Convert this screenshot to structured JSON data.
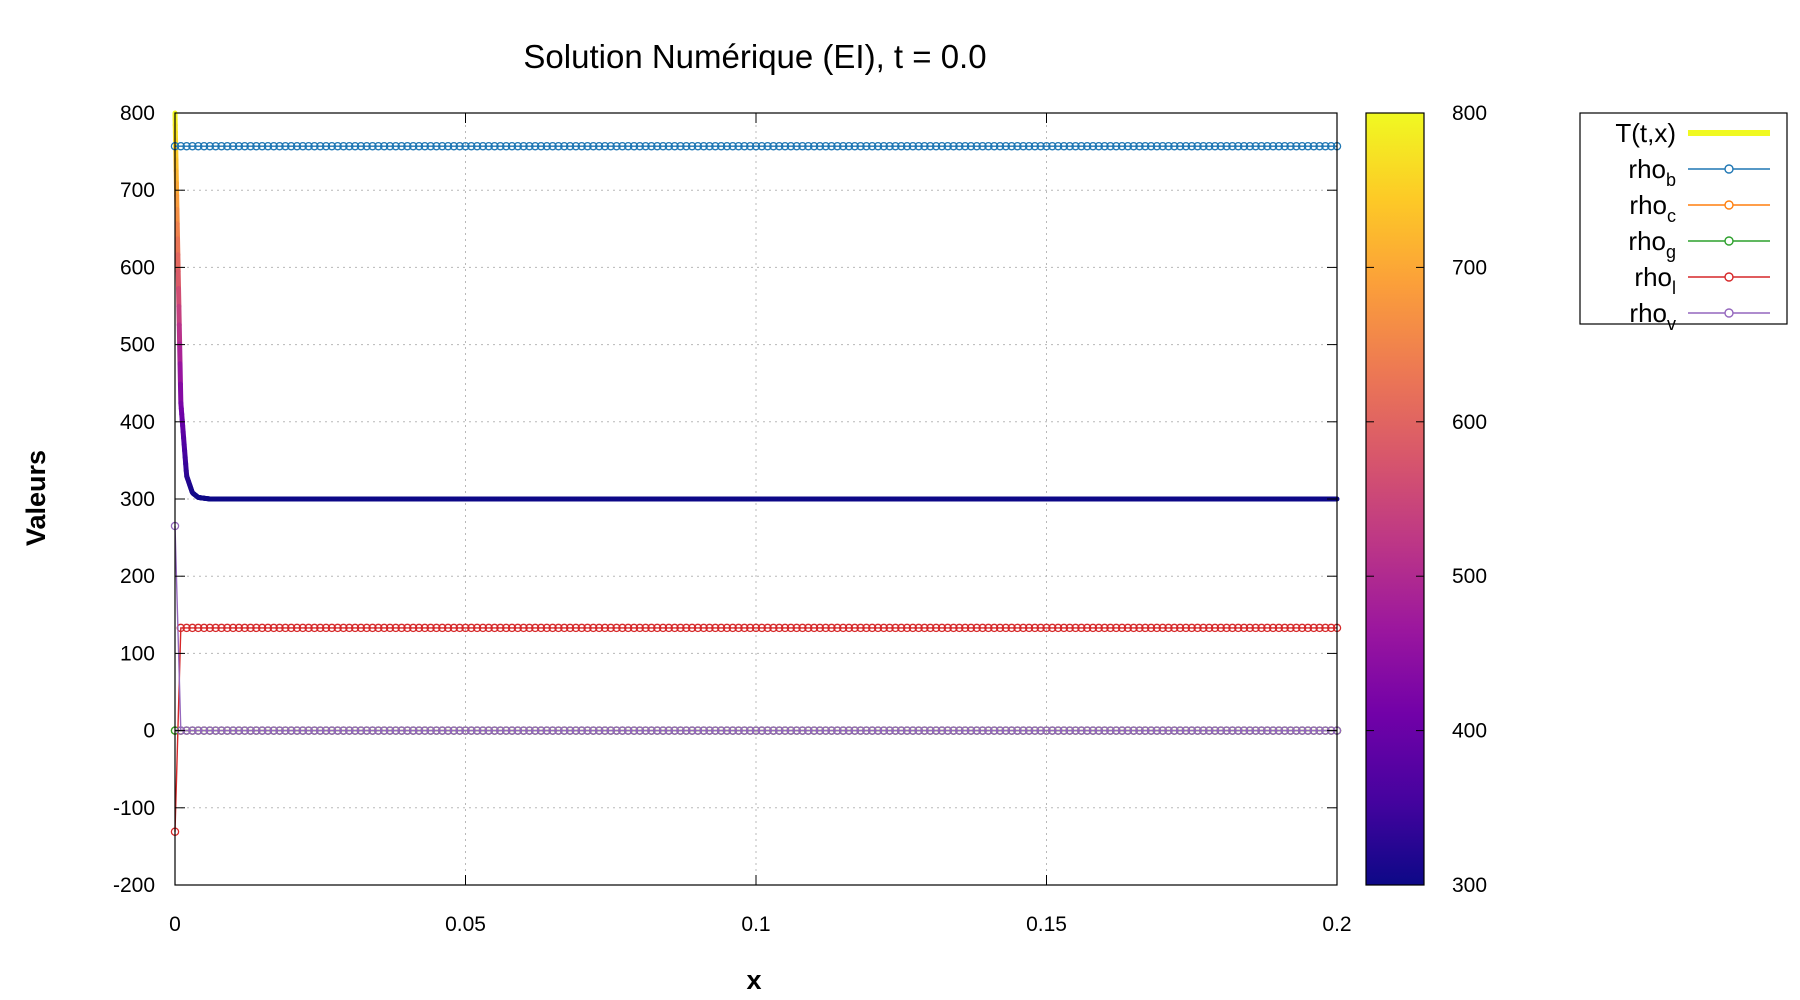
{
  "chart_data": {
    "type": "line",
    "title": "Solution Numérique (EI), t = 0.0",
    "xlabel": "x",
    "ylabel": "Valeurs",
    "xlim": [
      0,
      0.2
    ],
    "ylim": [
      -200,
      800
    ],
    "xticks": [
      "0",
      "0.05",
      "0.1",
      "0.15",
      "0.2"
    ],
    "xtick_values": [
      0,
      0.05,
      0.1,
      0.15,
      0.2
    ],
    "yticks": [
      "800",
      "700",
      "600",
      "500",
      "400",
      "300",
      "200",
      "100",
      "0",
      "-100",
      "-200"
    ],
    "ytick_values": [
      800,
      700,
      600,
      500,
      400,
      300,
      200,
      100,
      0,
      -100,
      -200
    ],
    "grid": true,
    "legend_position": "outside-right",
    "colorbar": {
      "range": [
        300,
        800
      ],
      "ticks": [
        "800",
        "700",
        "600",
        "500",
        "400",
        "300"
      ],
      "tick_values": [
        800,
        700,
        600,
        500,
        400,
        300
      ],
      "colormap": [
        "#0d0887",
        "#46039f",
        "#7201a8",
        "#9c179e",
        "#bd3786",
        "#d8576b",
        "#ed7953",
        "#fb9f3a",
        "#fdca26",
        "#f0f921"
      ]
    },
    "grid_points": 200,
    "series": [
      {
        "name": "T(t,x)",
        "name_main": "T(t,x)",
        "name_sub": "",
        "color": "#f0f921",
        "style": "thick-colormap",
        "points": [
          [
            0,
            800
          ],
          [
            0.001,
            425
          ],
          [
            0.002,
            330
          ],
          [
            0.003,
            308
          ],
          [
            0.004,
            302
          ],
          [
            0.006,
            300
          ],
          [
            0.2,
            300
          ]
        ]
      },
      {
        "name": "rho_b",
        "name_main": "rho",
        "name_sub": "b",
        "color": "#1f77b4",
        "style": "markers",
        "points": [
          [
            0,
            757
          ],
          [
            0.2,
            757
          ]
        ]
      },
      {
        "name": "rho_c",
        "name_main": "rho",
        "name_sub": "c",
        "color": "#ff7f0e",
        "style": "markers",
        "points": [
          [
            0,
            0
          ],
          [
            0.2,
            0
          ]
        ]
      },
      {
        "name": "rho_g",
        "name_main": "rho",
        "name_sub": "g",
        "color": "#2ca02c",
        "style": "markers",
        "points": [
          [
            0,
            0
          ],
          [
            0.2,
            0
          ]
        ]
      },
      {
        "name": "rho_l",
        "name_main": "rho",
        "name_sub": "l",
        "color": "#d62728",
        "style": "markers",
        "points": [
          [
            0,
            -131
          ],
          [
            0.001,
            133
          ],
          [
            0.2,
            133
          ]
        ]
      },
      {
        "name": "rho_v",
        "name_main": "rho",
        "name_sub": "v",
        "color": "#9467bd",
        "style": "markers",
        "points": [
          [
            0,
            265
          ],
          [
            0.001,
            0
          ],
          [
            0.2,
            0
          ]
        ]
      }
    ]
  }
}
